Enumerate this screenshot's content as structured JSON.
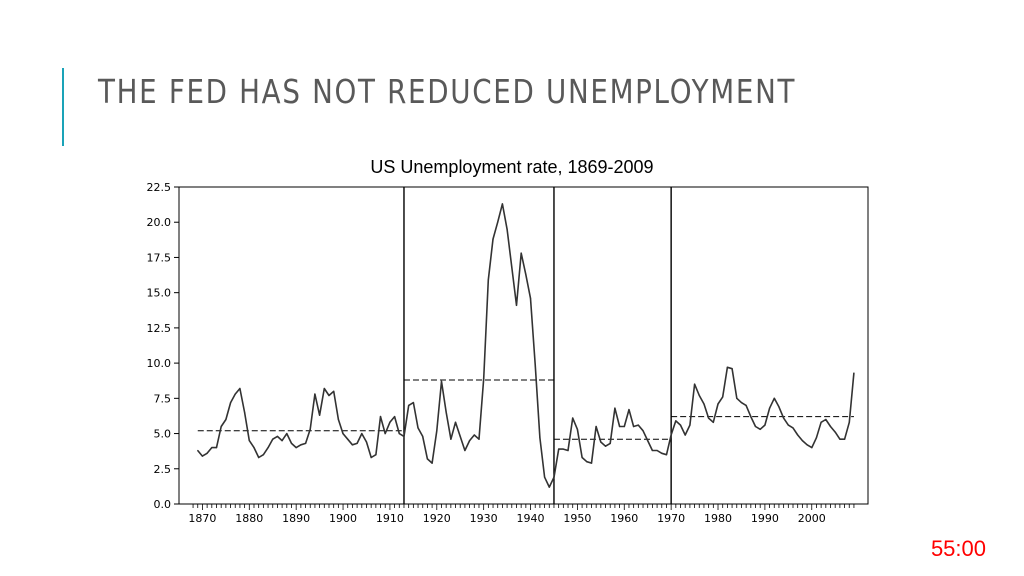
{
  "slide": {
    "title": "THE FED HAS NOT REDUCED UNEMPLOYMENT",
    "timer": "55:00",
    "accent_color": "#1aa3b8",
    "timer_color": "#ff0000"
  },
  "chart_data": {
    "type": "line",
    "title": "US Unemployment rate, 1869-2009",
    "xlabel": "",
    "ylabel": "",
    "xlim": [
      1865,
      2012
    ],
    "ylim": [
      0,
      22.5
    ],
    "grid": false,
    "y_ticks": [
      "0.0",
      "2.5",
      "5.0",
      "7.5",
      "10.0",
      "12.5",
      "15.0",
      "17.5",
      "20.0",
      "22.5"
    ],
    "x_ticks": [
      "1870",
      "1880",
      "1890",
      "1900",
      "1910",
      "1920",
      "1930",
      "1940",
      "1950",
      "1960",
      "1970",
      "1980",
      "1990",
      "2000"
    ],
    "regime_breaks": [
      1913,
      1945,
      1970
    ],
    "period_means": [
      {
        "start": 1869,
        "end": 1913,
        "value": 5.2
      },
      {
        "start": 1913,
        "end": 1945,
        "value": 8.8
      },
      {
        "start": 1945,
        "end": 1970,
        "value": 4.6
      },
      {
        "start": 1970,
        "end": 2009,
        "value": 6.2
      }
    ],
    "series": [
      {
        "x": [
          1869,
          1870,
          1871,
          1872,
          1873,
          1874,
          1875,
          1876,
          1877,
          1878,
          1879,
          1880,
          1881,
          1882,
          1883,
          1884,
          1885,
          1886,
          1887,
          1888,
          1889,
          1890,
          1891,
          1892,
          1893,
          1894,
          1895,
          1896,
          1897,
          1898,
          1899,
          1900,
          1901,
          1902,
          1903,
          1904,
          1905,
          1906,
          1907,
          1908,
          1909,
          1910,
          1911,
          1912,
          1913,
          1914,
          1915,
          1916,
          1917,
          1918,
          1919,
          1920,
          1921,
          1922,
          1923,
          1924,
          1925,
          1926,
          1927,
          1928,
          1929,
          1930,
          1931,
          1932,
          1933,
          1934,
          1935,
          1936,
          1937,
          1938,
          1939,
          1940,
          1941,
          1942,
          1943,
          1944,
          1945,
          1946,
          1947,
          1948,
          1949,
          1950,
          1951,
          1952,
          1953,
          1954,
          1955,
          1956,
          1957,
          1958,
          1959,
          1960,
          1961,
          1962,
          1963,
          1964,
          1965,
          1966,
          1967,
          1968,
          1969,
          1970,
          1971,
          1972,
          1973,
          1974,
          1975,
          1976,
          1977,
          1978,
          1979,
          1980,
          1981,
          1982,
          1983,
          1984,
          1985,
          1986,
          1987,
          1988,
          1989,
          1990,
          1991,
          1992,
          1993,
          1994,
          1995,
          1996,
          1997,
          1998,
          1999,
          2000,
          2001,
          2002,
          2003,
          2004,
          2005,
          2006,
          2007,
          2008,
          2009
        ],
        "values": [
          3.8,
          3.4,
          3.6,
          4.0,
          4.0,
          5.5,
          6.0,
          7.2,
          7.8,
          8.2,
          6.5,
          4.5,
          4.0,
          3.3,
          3.5,
          4.0,
          4.6,
          4.8,
          4.5,
          5.0,
          4.3,
          4.0,
          4.2,
          4.3,
          5.3,
          7.8,
          6.3,
          8.2,
          7.7,
          8.0,
          6.0,
          5.0,
          4.6,
          4.2,
          4.3,
          5.0,
          4.4,
          3.3,
          3.5,
          6.2,
          5.0,
          5.8,
          6.2,
          5.0,
          4.8,
          7.0,
          7.2,
          5.4,
          4.8,
          3.2,
          2.9,
          5.2,
          8.7,
          6.5,
          4.6,
          5.8,
          4.8,
          3.8,
          4.5,
          4.9,
          4.6,
          8.9,
          15.9,
          18.8,
          20.0,
          21.3,
          19.5,
          16.8,
          14.1,
          17.8,
          16.3,
          14.6,
          9.9,
          4.7,
          1.9,
          1.2,
          1.9,
          3.9,
          3.9,
          3.8,
          6.1,
          5.3,
          3.3,
          3.0,
          2.9,
          5.5,
          4.4,
          4.1,
          4.3,
          6.8,
          5.5,
          5.5,
          6.7,
          5.5,
          5.6,
          5.2,
          4.5,
          3.8,
          3.8,
          3.6,
          3.5,
          4.9,
          5.9,
          5.6,
          4.9,
          5.6,
          8.5,
          7.7,
          7.1,
          6.1,
          5.8,
          7.1,
          7.6,
          9.7,
          9.6,
          7.5,
          7.2,
          7.0,
          6.2,
          5.5,
          5.3,
          5.6,
          6.8,
          7.5,
          6.9,
          6.1,
          5.6,
          5.4,
          4.9,
          4.5,
          4.2,
          4.0,
          4.7,
          5.8,
          6.0,
          5.5,
          5.1,
          4.6,
          4.6,
          5.8,
          9.3
        ]
      }
    ]
  }
}
